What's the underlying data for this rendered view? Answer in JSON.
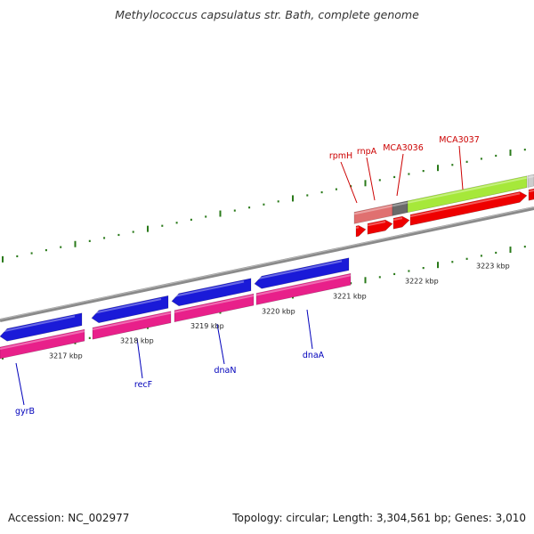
{
  "title": "Methylococcus capsulatus str. Bath, complete genome",
  "footer": {
    "accession": "Accession: NC_002977",
    "topology": "Topology: circular; Length: 3,304,561 bp; Genes: 3,010"
  },
  "ruler_labels": [
    "3217 kbp",
    "3218 kbp",
    "3219 kbp",
    "3220 kbp",
    "3221 kbp",
    "3222 kbp",
    "3223 kbp"
  ],
  "genes_top": [
    {
      "name": "rpmH"
    },
    {
      "name": "rnpA"
    },
    {
      "name": "MCA3036"
    },
    {
      "name": "MCA3037"
    }
  ],
  "genes_bottom": [
    {
      "name": "gyrB"
    },
    {
      "name": "recF"
    },
    {
      "name": "dnaN"
    },
    {
      "name": "dnaA"
    }
  ],
  "colors": {
    "backbone": "#8a8a8a",
    "tick": "#2a7a1a",
    "cds_blue": "#1a1ad8",
    "cds_pink": "#e8208a",
    "cds_red": "#ee0000",
    "feature_salmon": "#e07070",
    "feature_gray": "#6a6a6a",
    "feature_lime": "#a6e83a",
    "label_top": "#cc0000",
    "label_bottom": "#0000bb"
  }
}
